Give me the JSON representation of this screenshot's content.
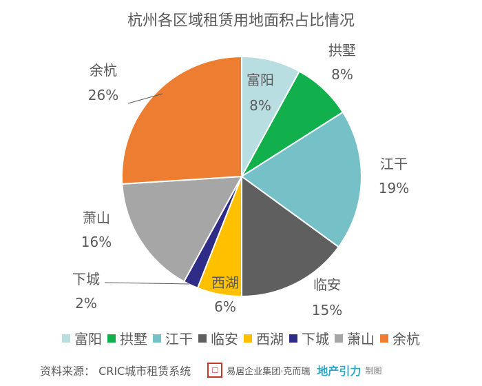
{
  "chart_data": {
    "type": "pie",
    "title": "杭州各区域租赁用地面积占比情况",
    "slices": [
      {
        "name": "富阳",
        "value": 8,
        "label": "8%",
        "color": "#B8DEE2"
      },
      {
        "name": "拱墅",
        "value": 8,
        "label": "8%",
        "color": "#12B04C"
      },
      {
        "name": "江干",
        "value": 19,
        "label": "19%",
        "color": "#76C0C8"
      },
      {
        "name": "临安",
        "value": 15,
        "label": "15%",
        "color": "#5F5F5F"
      },
      {
        "name": "西湖",
        "value": 6,
        "label": "6%",
        "color": "#FFC000"
      },
      {
        "name": "下城",
        "value": 2,
        "label": "2%",
        "color": "#2E2C86"
      },
      {
        "name": "萧山",
        "value": 16,
        "label": "16%",
        "color": "#A6A6A6"
      },
      {
        "name": "余杭",
        "value": 26,
        "label": "26%",
        "color": "#ED7D31"
      }
    ],
    "legend_position": "bottom"
  },
  "footer": {
    "source": "资料来源： CRIC城市租赁系统",
    "logo_text": "易居企业集团·克而瑞",
    "logo2": "地产引力",
    "credit": "制图"
  }
}
